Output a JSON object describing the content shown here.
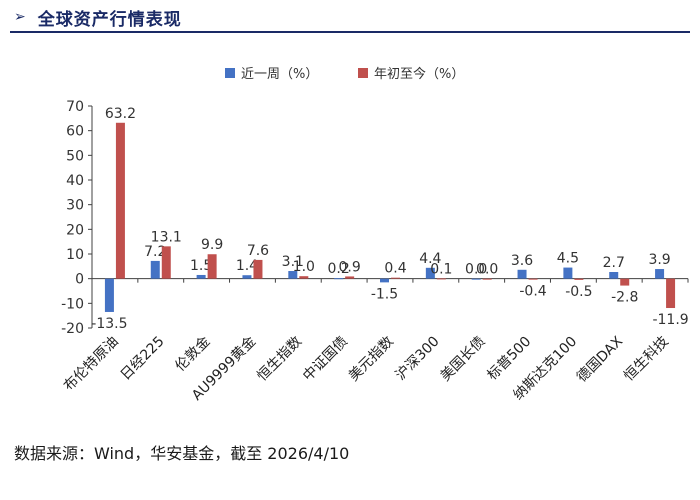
{
  "header": {
    "arrow": "➢",
    "title": "全球资产行情表现"
  },
  "source_note": "数据来源：Wind，华安基金，截至  2026/4/10",
  "colors": {
    "series_week": "#4472C4",
    "series_ytd": "#C0504D",
    "axis": "#404040",
    "header": "#1a2a66"
  },
  "chart_data": {
    "type": "bar",
    "title": "",
    "xlabel": "",
    "ylabel": "",
    "ylim": [
      -20,
      70
    ],
    "yticks": [
      -20,
      -10,
      0,
      10,
      20,
      30,
      40,
      50,
      60,
      70
    ],
    "grid": false,
    "legend_position": "top-center",
    "categories": [
      "布伦特原油",
      "日经225",
      "伦敦金",
      "AU9999黄金",
      "恒生指数",
      "中证国债",
      "美元指数",
      "沪深300",
      "美国长债",
      "标普500",
      "纳斯达克100",
      "德国DAX",
      "恒生科技"
    ],
    "series": [
      {
        "name": "近一周（%）",
        "values": [
          -13.5,
          7.2,
          1.5,
          1.4,
          3.1,
          0.2,
          -1.5,
          4.4,
          0.0,
          3.6,
          4.5,
          2.7,
          3.9
        ],
        "labels": [
          "-13.5",
          "7.2",
          "1.5",
          "1.4",
          "3.1",
          "0.2",
          "-1.5",
          "4.4",
          "0.0",
          "3.6",
          "4.5",
          "2.7",
          "3.9"
        ]
      },
      {
        "name": "年初至今（%）",
        "values": [
          63.2,
          13.1,
          9.9,
          7.6,
          1.0,
          0.9,
          0.4,
          0.1,
          0.0,
          -0.4,
          -0.5,
          -2.8,
          -11.9
        ],
        "labels": [
          "63.2",
          "13.1",
          "9.9",
          "7.6",
          "1.0",
          "0.9",
          "0.4",
          "0.1",
          "0.0",
          "-0.4",
          "-0.5",
          "-2.8",
          "-11.9"
        ]
      }
    ]
  }
}
